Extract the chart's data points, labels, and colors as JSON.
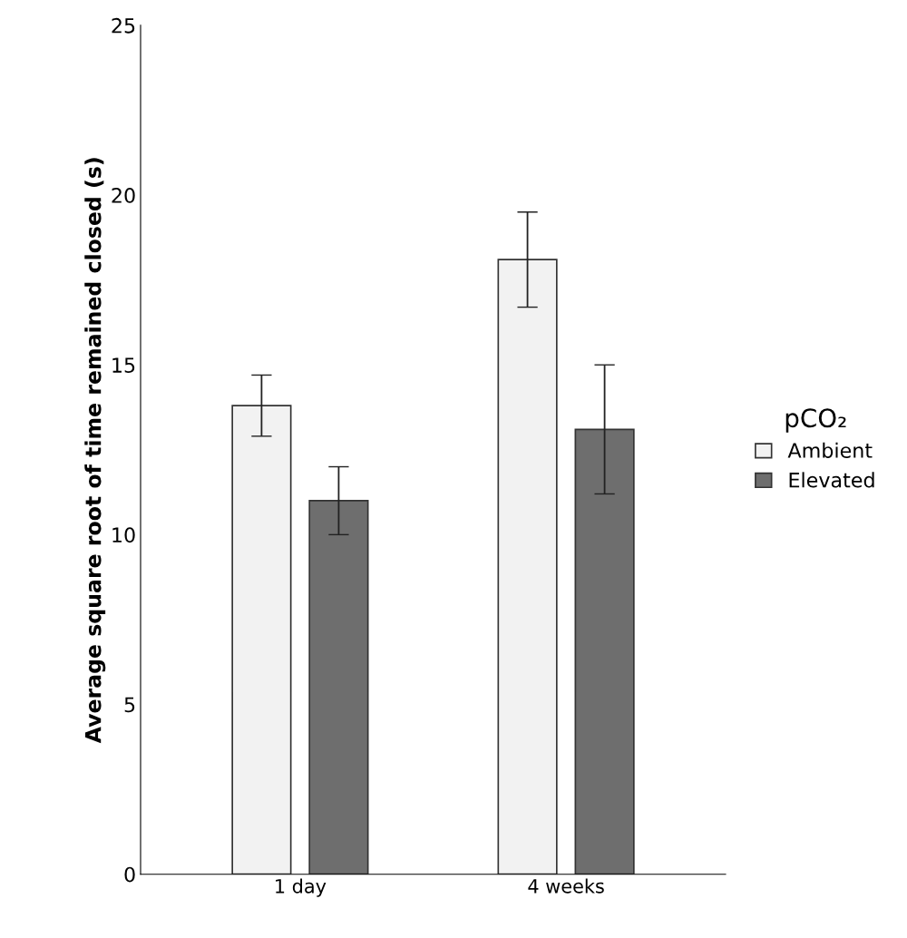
{
  "chart_data": {
    "type": "bar",
    "ylabel": "Average square root of time remained closed (s)",
    "legend_title": "pCO₂",
    "categories": [
      "1 day",
      "4 weeks"
    ],
    "series": [
      {
        "name": "Ambient",
        "color": "#f2f2f2",
        "values": [
          13.8,
          18.1
        ],
        "errors": [
          0.9,
          1.4
        ]
      },
      {
        "name": "Elevated",
        "color": "#6e6e6e",
        "values": [
          11.0,
          13.1
        ],
        "errors": [
          1.0,
          1.9
        ]
      }
    ],
    "ylim": [
      0,
      25
    ],
    "yticks": [
      0,
      5,
      10,
      15,
      20,
      25
    ],
    "grid": false,
    "legend": "right"
  }
}
